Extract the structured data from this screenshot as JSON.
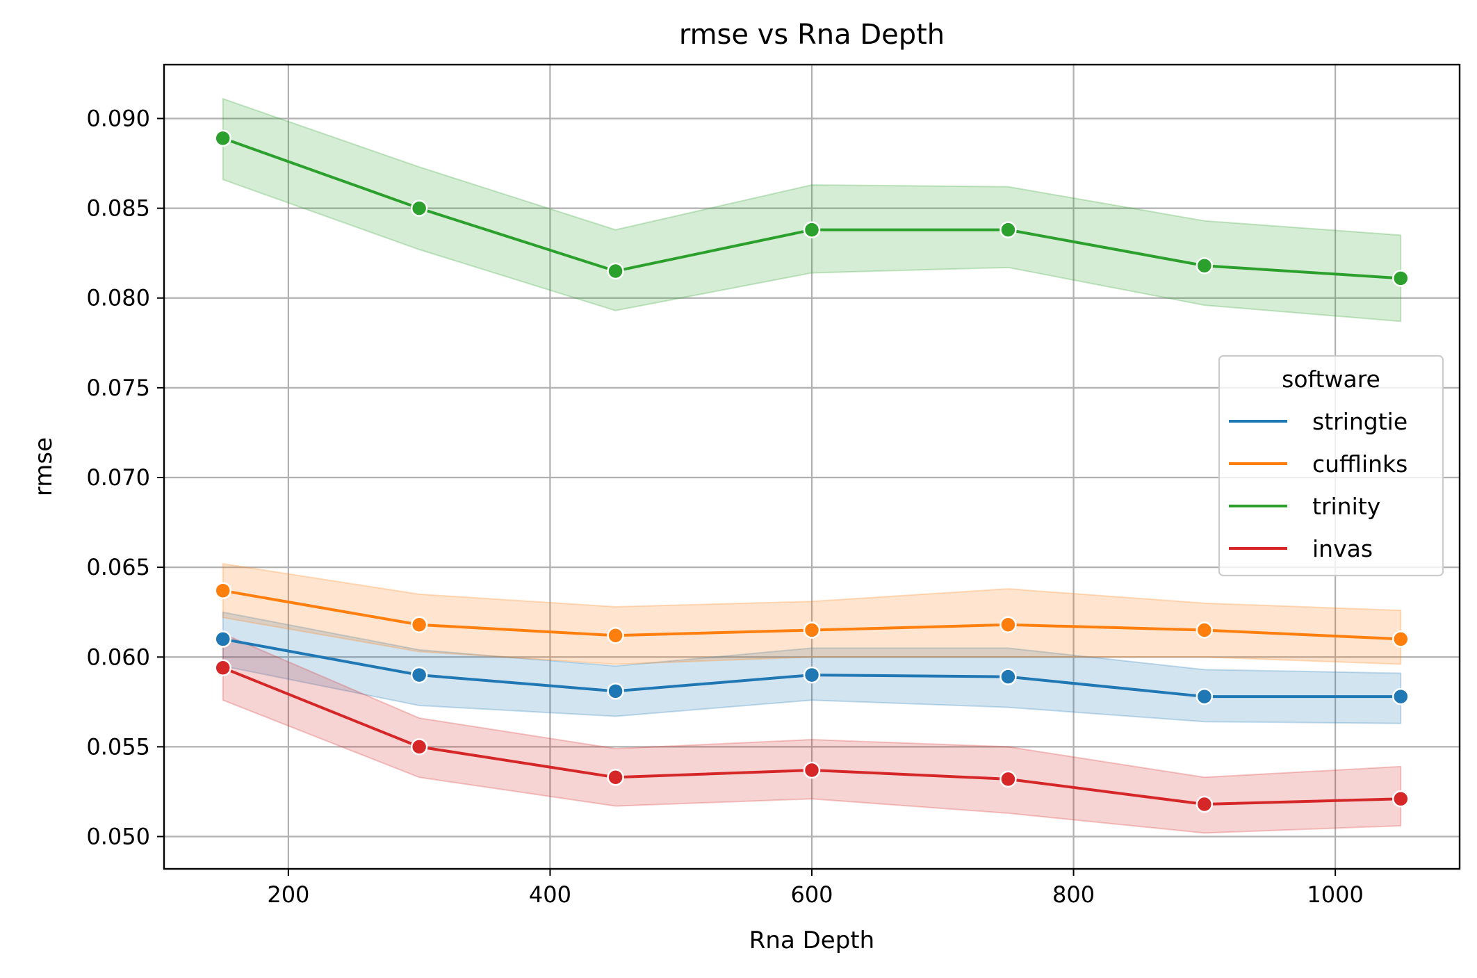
{
  "chart_data": {
    "type": "line",
    "title": "rmse vs Rna Depth",
    "xlabel": "Rna Depth",
    "ylabel": "rmse",
    "x": [
      150,
      300,
      450,
      600,
      750,
      900,
      1050
    ],
    "xlim": [
      105,
      1095
    ],
    "ylim": [
      0.0482,
      0.093
    ],
    "xticks": [
      200,
      400,
      600,
      800,
      1000
    ],
    "xtick_labels": [
      "200",
      "400",
      "600",
      "800",
      "1000"
    ],
    "yticks": [
      0.05,
      0.055,
      0.06,
      0.065,
      0.07,
      0.075,
      0.08,
      0.085,
      0.09
    ],
    "ytick_labels": [
      "0.050",
      "0.055",
      "0.060",
      "0.065",
      "0.070",
      "0.075",
      "0.080",
      "0.085",
      "0.090"
    ],
    "grid": true,
    "legend": {
      "title": "software",
      "placement": "center-right"
    },
    "series": [
      {
        "name": "stringtie",
        "color": "#1f77b4",
        "values": [
          0.061,
          0.059,
          0.0581,
          0.059,
          0.0589,
          0.0578,
          0.0578
        ],
        "ci_lower": [
          0.0595,
          0.0573,
          0.0567,
          0.0576,
          0.0572,
          0.0564,
          0.0563
        ],
        "ci_upper": [
          0.0625,
          0.0604,
          0.0595,
          0.0605,
          0.0605,
          0.0593,
          0.0591
        ]
      },
      {
        "name": "cufflinks",
        "color": "#ff7f0e",
        "values": [
          0.0637,
          0.0618,
          0.0612,
          0.0615,
          0.0618,
          0.0615,
          0.061
        ],
        "ci_lower": [
          0.0622,
          0.0603,
          0.0596,
          0.06,
          0.06,
          0.06,
          0.0596
        ],
        "ci_upper": [
          0.0652,
          0.0635,
          0.0628,
          0.0631,
          0.0638,
          0.063,
          0.0626
        ]
      },
      {
        "name": "trinity",
        "color": "#2ca02c",
        "values": [
          0.0889,
          0.085,
          0.0815,
          0.0838,
          0.0838,
          0.0818,
          0.0811
        ],
        "ci_lower": [
          0.0866,
          0.0827,
          0.0793,
          0.0814,
          0.0817,
          0.0796,
          0.0787
        ],
        "ci_upper": [
          0.0911,
          0.0873,
          0.0838,
          0.0863,
          0.0862,
          0.0843,
          0.0835
        ]
      },
      {
        "name": "invas",
        "color": "#d62728",
        "values": [
          0.0594,
          0.055,
          0.0533,
          0.0537,
          0.0532,
          0.0518,
          0.0521
        ],
        "ci_lower": [
          0.0576,
          0.0533,
          0.0517,
          0.0521,
          0.0513,
          0.0502,
          0.0506
        ],
        "ci_upper": [
          0.0613,
          0.0566,
          0.0549,
          0.0554,
          0.055,
          0.0533,
          0.0539
        ]
      }
    ]
  }
}
